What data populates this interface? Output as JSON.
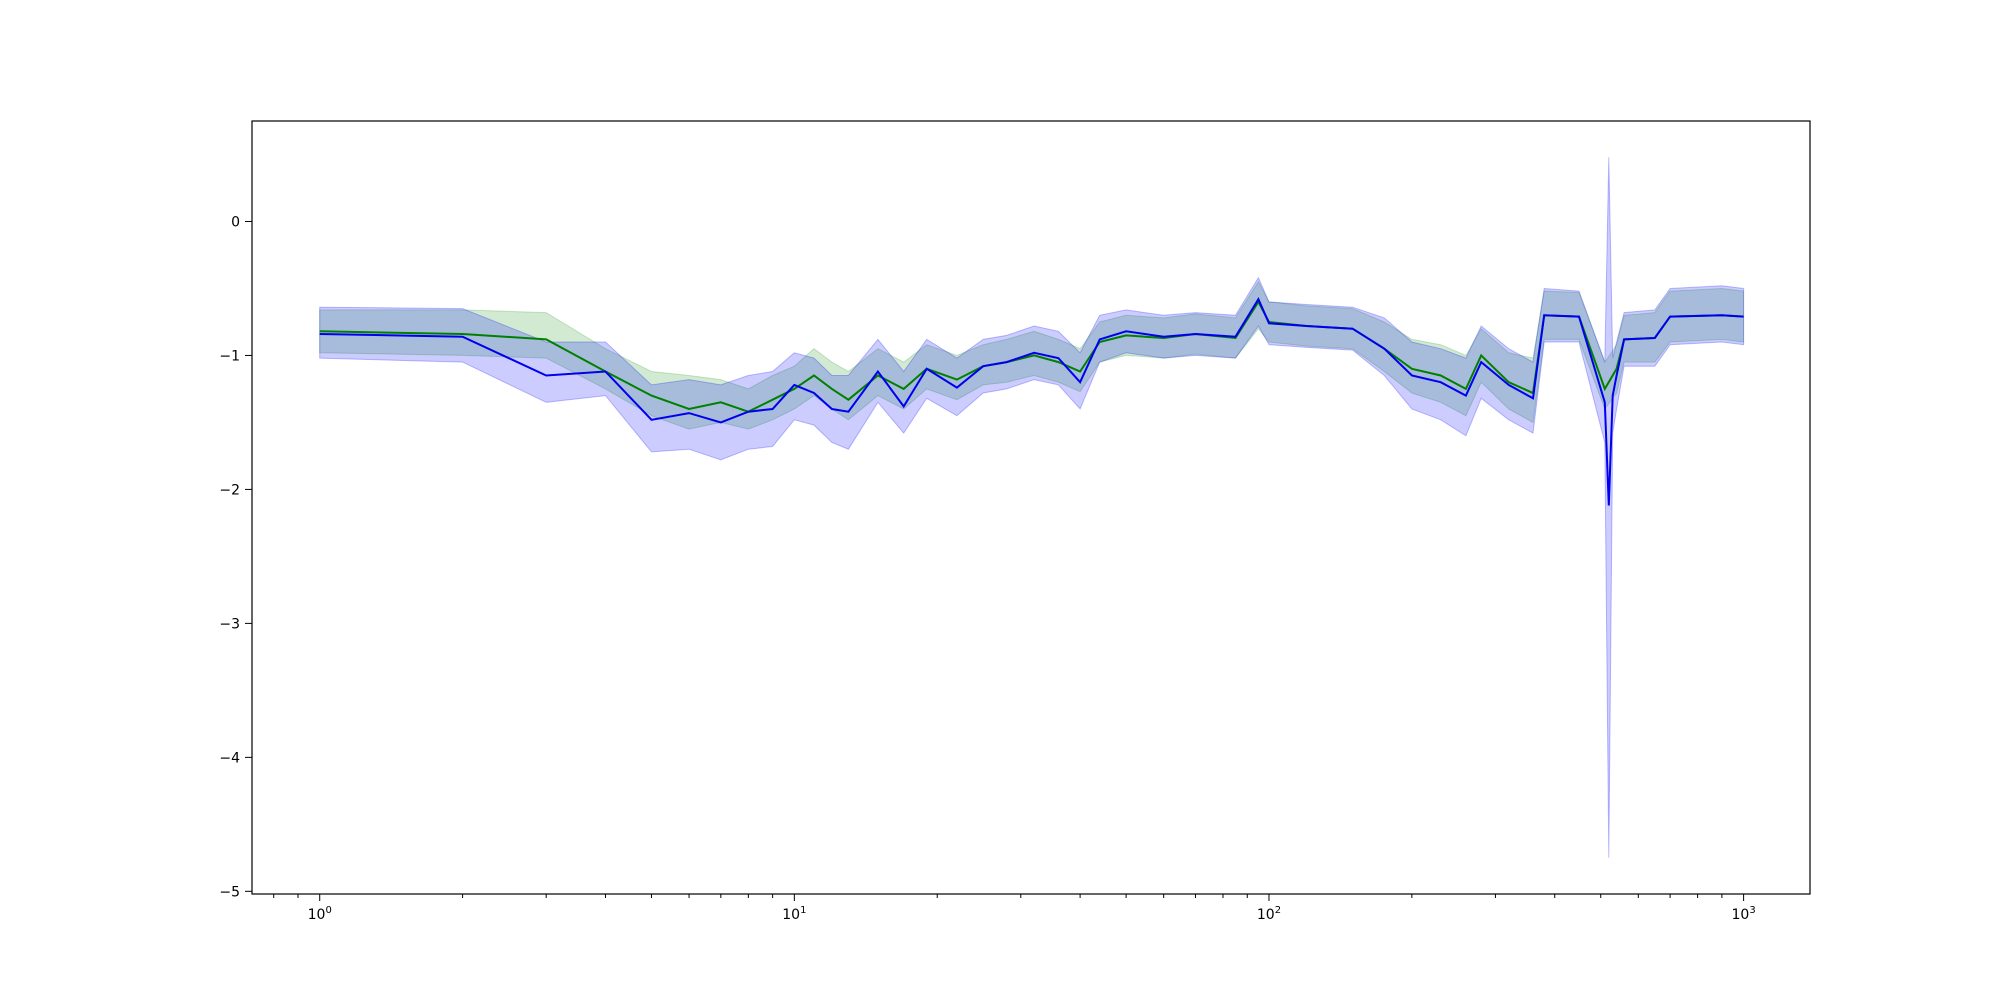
{
  "chart_data": {
    "type": "line",
    "title": "",
    "xlabel": "",
    "ylabel": "",
    "xscale": "log",
    "xlim": [
      0.72,
      1380
    ],
    "ylim": [
      -5.02,
      0.75
    ],
    "grid": false,
    "legend": "none",
    "xticks": [
      {
        "value": 1,
        "base": "10",
        "exp": "0"
      },
      {
        "value": 10,
        "base": "10",
        "exp": "1"
      },
      {
        "value": 100,
        "base": "10",
        "exp": "2"
      },
      {
        "value": 1000,
        "base": "10",
        "exp": "3"
      }
    ],
    "yticks": [
      {
        "value": 0,
        "label": "0"
      },
      {
        "value": -1,
        "label": "−1"
      },
      {
        "value": -2,
        "label": "−2"
      },
      {
        "value": -3,
        "label": "−3"
      },
      {
        "value": -4,
        "label": "−4"
      },
      {
        "value": -5,
        "label": "−5"
      }
    ],
    "series": [
      {
        "color": "#008000",
        "band_color": "#2ca02c",
        "band_opacity": 0.22,
        "x": [
          1,
          2,
          3,
          4,
          5,
          6,
          7,
          8,
          9,
          10,
          11,
          12,
          13,
          15,
          17,
          19,
          22,
          25,
          28,
          32,
          36,
          40,
          44,
          50,
          60,
          70,
          85,
          95,
          100,
          120,
          150,
          175,
          200,
          230,
          260,
          280,
          320,
          360,
          380,
          450,
          510,
          540,
          560,
          650,
          700,
          900,
          1000
        ],
        "y": [
          -0.82,
          -0.84,
          -0.88,
          -1.12,
          -1.3,
          -1.4,
          -1.35,
          -1.42,
          -1.33,
          -1.25,
          -1.15,
          -1.25,
          -1.33,
          -1.15,
          -1.25,
          -1.1,
          -1.18,
          -1.08,
          -1.05,
          -1.0,
          -1.05,
          -1.12,
          -0.9,
          -0.85,
          -0.87,
          -0.84,
          -0.87,
          -0.6,
          -0.75,
          -0.78,
          -0.8,
          -0.95,
          -1.1,
          -1.15,
          -1.25,
          -1.0,
          -1.2,
          -1.28,
          -0.7,
          -0.71,
          -1.25,
          -1.1,
          -0.88,
          -0.87,
          -0.71,
          -0.7,
          -0.71
        ],
        "lower": [
          -0.98,
          -1.0,
          -1.02,
          -1.25,
          -1.45,
          -1.55,
          -1.5,
          -1.55,
          -1.48,
          -1.4,
          -1.3,
          -1.4,
          -1.48,
          -1.3,
          -1.4,
          -1.25,
          -1.33,
          -1.22,
          -1.2,
          -1.15,
          -1.2,
          -1.27,
          -1.05,
          -1.0,
          -1.02,
          -0.99,
          -1.02,
          -0.8,
          -0.9,
          -0.93,
          -0.95,
          -1.12,
          -1.28,
          -1.35,
          -1.45,
          -1.2,
          -1.4,
          -1.5,
          -0.88,
          -0.88,
          -1.4,
          -1.28,
          -1.05,
          -1.05,
          -0.9,
          -0.88,
          -0.9
        ],
        "upper": [
          -0.66,
          -0.66,
          -0.68,
          -0.95,
          -1.12,
          -1.15,
          -1.18,
          -1.25,
          -1.15,
          -1.08,
          -0.95,
          -1.05,
          -1.12,
          -0.95,
          -1.05,
          -0.92,
          -1.0,
          -0.92,
          -0.88,
          -0.82,
          -0.88,
          -0.95,
          -0.75,
          -0.7,
          -0.72,
          -0.69,
          -0.72,
          -0.45,
          -0.6,
          -0.63,
          -0.65,
          -0.75,
          -0.88,
          -0.92,
          -1.0,
          -0.8,
          -0.98,
          -1.02,
          -0.52,
          -0.53,
          -1.05,
          -0.92,
          -0.7,
          -0.68,
          -0.52,
          -0.5,
          -0.52
        ]
      },
      {
        "color": "#0000ee",
        "band_color": "#0000ff",
        "band_opacity": 0.2,
        "x": [
          1,
          2,
          3,
          4,
          5,
          6,
          7,
          8,
          9,
          10,
          11,
          12,
          13,
          15,
          17,
          19,
          22,
          25,
          28,
          32,
          36,
          40,
          44,
          50,
          60,
          70,
          85,
          95,
          100,
          120,
          150,
          175,
          200,
          230,
          260,
          280,
          320,
          360,
          380,
          450,
          510,
          520,
          530,
          540,
          560,
          650,
          700,
          900,
          1000
        ],
        "y": [
          -0.84,
          -0.86,
          -1.15,
          -1.12,
          -1.48,
          -1.43,
          -1.5,
          -1.42,
          -1.4,
          -1.22,
          -1.28,
          -1.4,
          -1.42,
          -1.12,
          -1.38,
          -1.1,
          -1.24,
          -1.08,
          -1.05,
          -0.98,
          -1.02,
          -1.2,
          -0.88,
          -0.82,
          -0.86,
          -0.84,
          -0.86,
          -0.58,
          -0.76,
          -0.78,
          -0.8,
          -0.95,
          -1.15,
          -1.2,
          -1.3,
          -1.05,
          -1.22,
          -1.32,
          -0.7,
          -0.71,
          -1.35,
          -2.12,
          -1.3,
          -1.15,
          -0.88,
          -0.87,
          -0.71,
          -0.7,
          -0.71
        ],
        "lower": [
          -1.02,
          -1.05,
          -1.35,
          -1.3,
          -1.72,
          -1.7,
          -1.78,
          -1.7,
          -1.68,
          -1.48,
          -1.52,
          -1.65,
          -1.7,
          -1.35,
          -1.58,
          -1.32,
          -1.45,
          -1.28,
          -1.25,
          -1.18,
          -1.22,
          -1.4,
          -1.05,
          -0.98,
          -1.02,
          -1.0,
          -1.02,
          -0.78,
          -0.92,
          -0.94,
          -0.96,
          -1.15,
          -1.4,
          -1.48,
          -1.6,
          -1.32,
          -1.48,
          -1.58,
          -0.9,
          -0.9,
          -1.65,
          -4.75,
          -1.58,
          -1.4,
          -1.08,
          -1.08,
          -0.92,
          -0.9,
          -0.92
        ],
        "upper": [
          -0.64,
          -0.65,
          -0.9,
          -0.9,
          -1.22,
          -1.18,
          -1.22,
          -1.15,
          -1.12,
          -0.98,
          -1.02,
          -1.15,
          -1.15,
          -0.88,
          -1.12,
          -0.88,
          -1.02,
          -0.88,
          -0.85,
          -0.78,
          -0.82,
          -0.98,
          -0.7,
          -0.66,
          -0.7,
          -0.68,
          -0.7,
          -0.42,
          -0.6,
          -0.62,
          -0.64,
          -0.72,
          -0.9,
          -0.95,
          -1.02,
          -0.78,
          -0.95,
          -1.05,
          -0.5,
          -0.52,
          -1.05,
          0.48,
          -1.02,
          -0.9,
          -0.68,
          -0.66,
          -0.5,
          -0.48,
          -0.5
        ]
      }
    ]
  }
}
